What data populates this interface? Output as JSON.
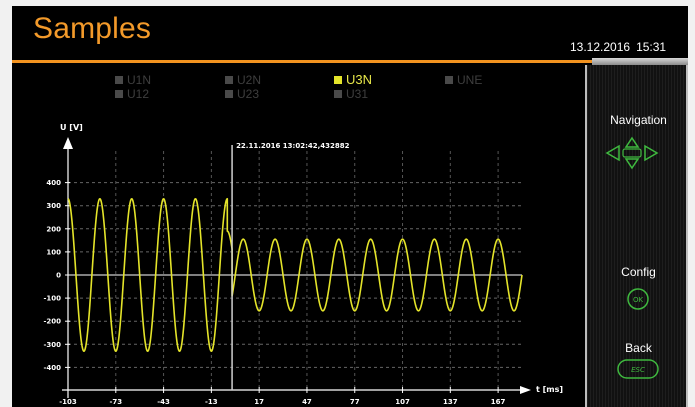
{
  "header": {
    "title": "Samples",
    "date": "13.12.2016",
    "time": "15:31"
  },
  "legend": [
    {
      "label": "U1N",
      "active": false
    },
    {
      "label": "U2N",
      "active": false
    },
    {
      "label": "U3N",
      "active": true
    },
    {
      "label": "UNE",
      "active": false
    },
    {
      "label": "U12",
      "active": false
    },
    {
      "label": "U23",
      "active": false
    },
    {
      "label": "U31",
      "active": false
    }
  ],
  "side": {
    "navigation_label": "Navigation",
    "config_label": "Config",
    "ok_label": "OK",
    "back_label": "Back",
    "esc_label": "ESC"
  },
  "colors": {
    "accent": "#f3931f",
    "trace": "#e4e42a",
    "nav": "#3fb93f"
  },
  "chart_data": {
    "type": "line",
    "ylabel": "U [V]",
    "xlabel": "t [ms]",
    "cursor_label": "22.11.2016 13:02:42,432882",
    "cursor_x": 0,
    "xlim": [
      -103,
      182
    ],
    "ylim": [
      -450,
      450
    ],
    "y_ticks": [
      400,
      300,
      200,
      100,
      0,
      -100,
      -200,
      -300,
      -400
    ],
    "x_ticks": [
      -103,
      -73,
      -43,
      -13,
      17,
      47,
      77,
      107,
      137,
      167
    ],
    "grid": true,
    "series": [
      {
        "frequency_hz": 50,
        "segments": [
          {
            "t_start": -103,
            "t_end": -3,
            "amplitude": 330,
            "phase_deg": 90
          },
          {
            "t_start": -3,
            "t_end": 0,
            "amplitude": 190,
            "phase_deg": 90
          },
          {
            "t_start": 0,
            "t_end": 182,
            "amplitude": 155,
            "phase_deg": 270
          }
        ]
      }
    ]
  }
}
